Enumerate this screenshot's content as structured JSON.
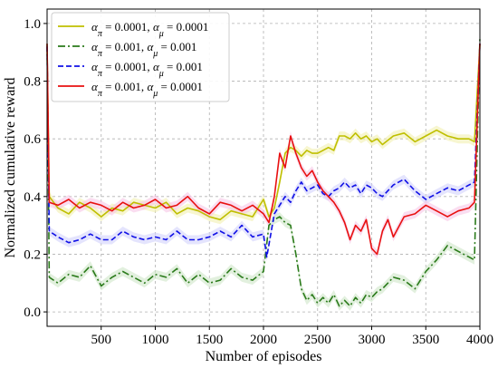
{
  "chart_data": {
    "type": "line",
    "title": "",
    "xlabel": "Number of episodes",
    "ylabel": "Normalized cumulative reward",
    "xlim": [
      0,
      4000
    ],
    "ylim": [
      -0.05,
      1.05
    ],
    "grid": true,
    "legend_position": "top-left",
    "x_ticks": [
      500,
      1000,
      1500,
      2000,
      2500,
      3000,
      3500,
      4000
    ],
    "x_tick_labels": [
      "500",
      "1000",
      "1500",
      "2000",
      "2500",
      "3000",
      "3500",
      "4000"
    ],
    "y_ticks": [
      0.0,
      0.2,
      0.4,
      0.6,
      0.8,
      1.0
    ],
    "y_tick_labels": [
      "0.0",
      "0.2",
      "0.4",
      "0.6",
      "0.8",
      "1.0"
    ],
    "series": [
      {
        "name": "α_π = 0.0001, α_μ = 0.0001",
        "legend_parts": [
          "α",
          "π",
          " = 0.0001, ",
          "α",
          "μ",
          " = 0.0001"
        ],
        "color": "#bfbf00",
        "dash": "solid",
        "x": [
          0,
          20,
          100,
          200,
          300,
          400,
          500,
          600,
          700,
          800,
          900,
          1000,
          1100,
          1200,
          1300,
          1400,
          1500,
          1600,
          1700,
          1800,
          1900,
          1950,
          2000,
          2050,
          2100,
          2150,
          2200,
          2250,
          2300,
          2350,
          2400,
          2450,
          2500,
          2550,
          2600,
          2650,
          2700,
          2750,
          2800,
          2850,
          2900,
          2950,
          3000,
          3050,
          3100,
          3200,
          3300,
          3400,
          3500,
          3600,
          3700,
          3800,
          3900,
          3950,
          4000
        ],
        "y": [
          0.92,
          0.4,
          0.36,
          0.34,
          0.38,
          0.36,
          0.33,
          0.36,
          0.35,
          0.38,
          0.37,
          0.36,
          0.38,
          0.34,
          0.36,
          0.35,
          0.33,
          0.32,
          0.35,
          0.34,
          0.33,
          0.36,
          0.39,
          0.33,
          0.36,
          0.45,
          0.55,
          0.57,
          0.56,
          0.54,
          0.56,
          0.55,
          0.55,
          0.56,
          0.57,
          0.56,
          0.61,
          0.61,
          0.6,
          0.62,
          0.6,
          0.61,
          0.59,
          0.6,
          0.58,
          0.61,
          0.62,
          0.59,
          0.61,
          0.63,
          0.61,
          0.6,
          0.6,
          0.59,
          0.93
        ]
      },
      {
        "name": "α_π = 0.001, α_μ = 0.001",
        "legend_parts": [
          "α",
          "π",
          " = 0.001, ",
          "α",
          "μ",
          " = 0.001"
        ],
        "color": "#2a7a1a",
        "dash": "dashdot",
        "x": [
          0,
          20,
          100,
          200,
          300,
          400,
          500,
          600,
          700,
          800,
          900,
          1000,
          1100,
          1200,
          1300,
          1400,
          1500,
          1600,
          1700,
          1800,
          1900,
          2000,
          2050,
          2100,
          2150,
          2200,
          2250,
          2300,
          2350,
          2400,
          2450,
          2500,
          2550,
          2600,
          2650,
          2700,
          2750,
          2800,
          2850,
          2900,
          2950,
          3000,
          3050,
          3100,
          3200,
          3300,
          3400,
          3500,
          3600,
          3700,
          3800,
          3900,
          3950,
          4000
        ],
        "y": [
          0.93,
          0.12,
          0.1,
          0.13,
          0.12,
          0.16,
          0.09,
          0.12,
          0.14,
          0.12,
          0.1,
          0.13,
          0.12,
          0.15,
          0.1,
          0.13,
          0.1,
          0.11,
          0.15,
          0.12,
          0.11,
          0.14,
          0.3,
          0.32,
          0.33,
          0.31,
          0.3,
          0.2,
          0.08,
          0.04,
          0.06,
          0.03,
          0.05,
          0.03,
          0.06,
          0.02,
          0.04,
          0.02,
          0.05,
          0.03,
          0.06,
          0.05,
          0.07,
          0.08,
          0.12,
          0.11,
          0.08,
          0.14,
          0.18,
          0.23,
          0.21,
          0.19,
          0.18,
          0.95
        ]
      },
      {
        "name": "α_π = 0.0001, α_μ = 0.001",
        "legend_parts": [
          "α",
          "π",
          " = 0.0001, ",
          "α",
          "μ",
          " = 0.001"
        ],
        "color": "#1010e6",
        "dash": "dashed",
        "x": [
          0,
          20,
          100,
          200,
          300,
          400,
          500,
          600,
          700,
          800,
          900,
          1000,
          1100,
          1200,
          1300,
          1400,
          1500,
          1600,
          1700,
          1800,
          1900,
          2000,
          2030,
          2100,
          2150,
          2200,
          2250,
          2300,
          2350,
          2400,
          2450,
          2500,
          2550,
          2600,
          2650,
          2700,
          2750,
          2800,
          2850,
          2900,
          2950,
          3000,
          3050,
          3100,
          3200,
          3300,
          3400,
          3500,
          3600,
          3700,
          3800,
          3900,
          3950,
          4000
        ],
        "y": [
          0.92,
          0.28,
          0.26,
          0.24,
          0.25,
          0.27,
          0.25,
          0.25,
          0.28,
          0.26,
          0.25,
          0.26,
          0.25,
          0.28,
          0.25,
          0.25,
          0.26,
          0.28,
          0.26,
          0.3,
          0.26,
          0.27,
          0.19,
          0.34,
          0.37,
          0.4,
          0.38,
          0.42,
          0.45,
          0.42,
          0.43,
          0.44,
          0.41,
          0.4,
          0.42,
          0.43,
          0.45,
          0.43,
          0.44,
          0.41,
          0.44,
          0.43,
          0.41,
          0.4,
          0.44,
          0.46,
          0.42,
          0.39,
          0.41,
          0.43,
          0.42,
          0.44,
          0.45,
          0.93
        ]
      },
      {
        "name": "α_π = 0.001, α_μ = 0.0001",
        "legend_parts": [
          "α",
          "π",
          " = 0.001, ",
          "α",
          "μ",
          " = 0.0001"
        ],
        "color": "#e81010",
        "dash": "solid",
        "x": [
          0,
          20,
          100,
          200,
          300,
          400,
          500,
          600,
          700,
          800,
          900,
          1000,
          1100,
          1200,
          1300,
          1400,
          1500,
          1600,
          1700,
          1800,
          1900,
          2000,
          2050,
          2100,
          2150,
          2200,
          2250,
          2300,
          2350,
          2400,
          2450,
          2500,
          2550,
          2600,
          2650,
          2700,
          2750,
          2800,
          2850,
          2900,
          2950,
          3000,
          3050,
          3100,
          3150,
          3200,
          3300,
          3400,
          3500,
          3600,
          3700,
          3800,
          3900,
          3950,
          4000
        ],
        "y": [
          0.93,
          0.38,
          0.37,
          0.39,
          0.36,
          0.38,
          0.37,
          0.35,
          0.38,
          0.36,
          0.37,
          0.39,
          0.36,
          0.37,
          0.4,
          0.36,
          0.34,
          0.38,
          0.37,
          0.35,
          0.37,
          0.34,
          0.31,
          0.4,
          0.55,
          0.5,
          0.61,
          0.55,
          0.5,
          0.47,
          0.49,
          0.45,
          0.42,
          0.4,
          0.38,
          0.35,
          0.31,
          0.25,
          0.3,
          0.28,
          0.32,
          0.22,
          0.2,
          0.28,
          0.32,
          0.26,
          0.33,
          0.34,
          0.37,
          0.35,
          0.33,
          0.35,
          0.36,
          0.38,
          0.93
        ]
      }
    ]
  }
}
